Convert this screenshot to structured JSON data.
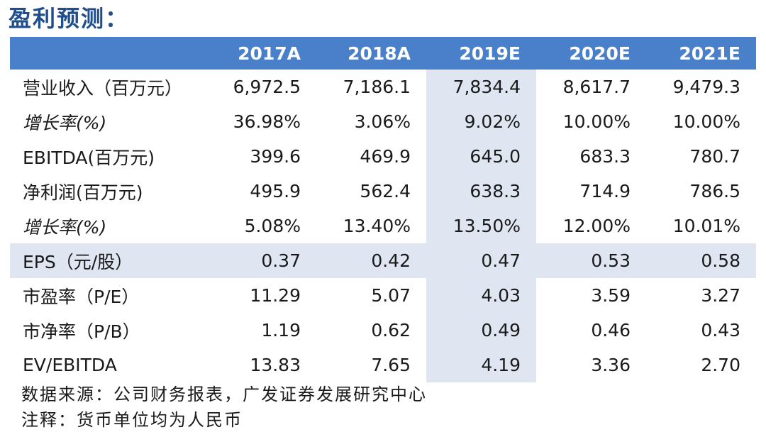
{
  "title": "盈利预测：",
  "columns": [
    "2017A",
    "2018A",
    "2019E",
    "2020E",
    "2021E"
  ],
  "rows": [
    {
      "label": "营业收入（百万元）",
      "italic": false,
      "shaded": false,
      "values": [
        "6,972.5",
        "7,186.1",
        "7,834.4",
        "8,617.7",
        "9,479.3"
      ]
    },
    {
      "label": "增长率(%)",
      "italic": true,
      "shaded": false,
      "values": [
        "36.98%",
        "3.06%",
        "9.02%",
        "10.00%",
        "10.00%"
      ]
    },
    {
      "label": "EBITDA(百万元)",
      "italic": false,
      "shaded": false,
      "values": [
        "399.6",
        "469.9",
        "645.0",
        "683.3",
        "780.7"
      ]
    },
    {
      "label": "净利润(百万元)",
      "italic": false,
      "shaded": false,
      "values": [
        "495.9",
        "562.4",
        "638.3",
        "714.9",
        "786.5"
      ]
    },
    {
      "label": "增长率(%)",
      "italic": true,
      "shaded": false,
      "values": [
        "5.08%",
        "13.40%",
        "13.50%",
        "12.00%",
        "10.01%"
      ]
    },
    {
      "label": "EPS（元/股）",
      "italic": false,
      "shaded": true,
      "values": [
        "0.37",
        "0.42",
        "0.47",
        "0.53",
        "0.58"
      ]
    },
    {
      "label": "市盈率（P/E）",
      "italic": false,
      "shaded": false,
      "values": [
        "11.29",
        "5.07",
        "4.03",
        "3.59",
        "3.27"
      ]
    },
    {
      "label": "市净率（P/B）",
      "italic": false,
      "shaded": false,
      "values": [
        "1.19",
        "0.62",
        "0.49",
        "0.46",
        "0.43"
      ]
    },
    {
      "label": "EV/EBITDA",
      "italic": false,
      "shaded": false,
      "values": [
        "13.83",
        "7.65",
        "4.19",
        "3.36",
        "2.70"
      ]
    }
  ],
  "notes": {
    "source": "数据来源：公司财务报表，广发证券发展研究中心",
    "remark": "注释：货币单位均为人民币"
  },
  "colors": {
    "header_bg": "#4a7fc9",
    "highlight_bg": "#dfe6f2",
    "title_color": "#1f4e8c"
  }
}
